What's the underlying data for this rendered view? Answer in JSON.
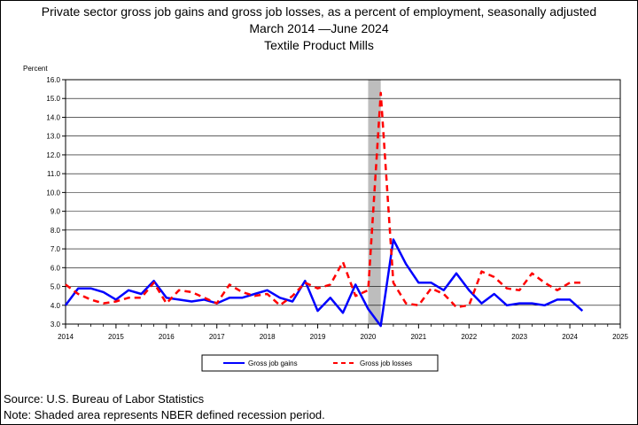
{
  "chart_data": {
    "type": "line",
    "title": "Private sector gross job gains and gross job losses, as a percent of employment, seasonally adjusted",
    "subtitle_lines": [
      "March 2014 —June 2024",
      "Textile Product Mills"
    ],
    "ylabel": "Percent",
    "xlabel": "",
    "ylim": [
      3.0,
      16.0
    ],
    "y_ticks": [
      "3.0",
      "4.0",
      "5.0",
      "6.0",
      "7.0",
      "8.0",
      "9.0",
      "10.0",
      "11.0",
      "12.0",
      "13.0",
      "14.0",
      "15.0",
      "16.0"
    ],
    "xlim": [
      2014.0,
      2025.0
    ],
    "x_ticks": [
      "2014",
      "2015",
      "2016",
      "2017",
      "2018",
      "2019",
      "2020",
      "2021",
      "2022",
      "2023",
      "2024",
      "2025"
    ],
    "grid": true,
    "legend_position": "bottom",
    "recession": {
      "start": 2020.0,
      "end": 2020.25
    },
    "x": [
      2014.0,
      2014.25,
      2014.5,
      2014.75,
      2015.0,
      2015.25,
      2015.5,
      2015.75,
      2016.0,
      2016.25,
      2016.5,
      2016.75,
      2017.0,
      2017.25,
      2017.5,
      2017.75,
      2018.0,
      2018.25,
      2018.5,
      2018.75,
      2019.0,
      2019.25,
      2019.5,
      2019.75,
      2020.0,
      2020.25,
      2020.5,
      2020.75,
      2021.0,
      2021.25,
      2021.5,
      2021.75,
      2022.0,
      2022.25,
      2022.5,
      2022.75,
      2023.0,
      2023.25,
      2023.5,
      2023.75,
      2024.0,
      2024.25
    ],
    "series": [
      {
        "name": "Gross job gains",
        "color": "#0000ff",
        "style": "solid",
        "values": [
          4.0,
          4.9,
          4.9,
          4.7,
          4.3,
          4.8,
          4.6,
          5.3,
          4.4,
          4.3,
          4.2,
          4.3,
          4.1,
          4.4,
          4.4,
          4.6,
          4.8,
          4.4,
          4.2,
          5.3,
          3.7,
          4.4,
          3.6,
          5.1,
          3.8,
          2.9,
          7.5,
          6.2,
          5.2,
          5.2,
          4.8,
          5.7,
          4.8,
          4.1,
          4.6,
          4.0,
          4.1,
          4.1,
          4.0,
          4.3,
          4.3,
          3.7
        ]
      },
      {
        "name": "Gross job losses",
        "color": "#ff0000",
        "style": "dashed",
        "values": [
          5.1,
          4.6,
          4.3,
          4.1,
          4.2,
          4.4,
          4.4,
          5.2,
          4.1,
          4.8,
          4.7,
          4.4,
          4.1,
          5.1,
          4.7,
          4.5,
          4.6,
          4.0,
          4.5,
          5.2,
          4.9,
          5.1,
          6.3,
          4.5,
          4.8,
          15.3,
          5.2,
          4.1,
          4.0,
          4.9,
          4.6,
          3.9,
          4.0,
          5.8,
          5.5,
          4.9,
          4.8,
          5.7,
          5.2,
          4.8,
          5.2,
          5.2
        ]
      }
    ]
  },
  "footer": {
    "source": "Source: U.S. Bureau of Labor Statistics",
    "note": "Note: Shaded area represents NBER defined recession period."
  }
}
